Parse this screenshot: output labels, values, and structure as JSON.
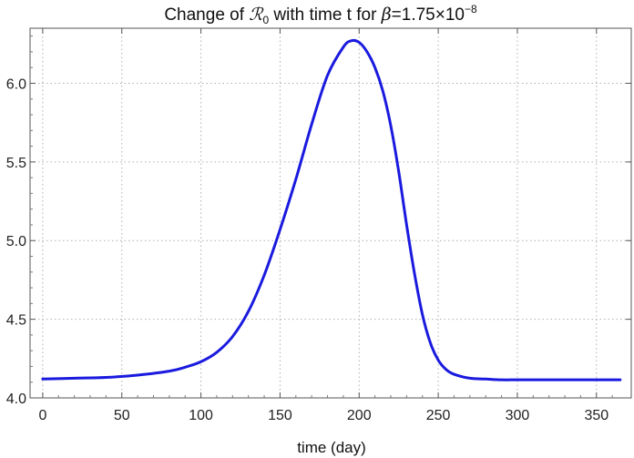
{
  "chart_data": {
    "type": "line",
    "title": {
      "prefix": "Change of ",
      "symbol": "ℛ",
      "subscript": "0",
      "middle": " with time t for ",
      "greek": "β",
      "value": "=1.75×10",
      "exponent": "−8"
    },
    "xlabel": "time (day)",
    "ylabel": "",
    "xlim": [
      -8,
      372
    ],
    "ylim": [
      4.0,
      6.35
    ],
    "x_ticks": [
      0,
      50,
      100,
      150,
      200,
      250,
      300,
      350
    ],
    "y_ticks": [
      4.0,
      4.5,
      5.0,
      5.5,
      6.0
    ],
    "y_tick_labels": [
      "4.0",
      "4.5",
      "5.0",
      "5.5",
      "6.0"
    ],
    "grid": true,
    "series": [
      {
        "color": "#1a1adf",
        "x": [
          0,
          20,
          40,
          60,
          80,
          90,
          100,
          110,
          120,
          130,
          140,
          150,
          160,
          170,
          180,
          190,
          195,
          200,
          205,
          210,
          215,
          220,
          225,
          230,
          235,
          240,
          245,
          250,
          255,
          260,
          270,
          280,
          290,
          300,
          320,
          340,
          365
        ],
        "y": [
          4.12,
          4.125,
          4.13,
          4.145,
          4.17,
          4.195,
          4.23,
          4.29,
          4.39,
          4.55,
          4.78,
          5.07,
          5.39,
          5.74,
          6.05,
          6.23,
          6.27,
          6.26,
          6.2,
          6.1,
          5.95,
          5.73,
          5.44,
          5.1,
          4.79,
          4.53,
          4.35,
          4.24,
          4.18,
          4.15,
          4.125,
          4.12,
          4.115,
          4.115,
          4.115,
          4.115,
          4.115
        ]
      }
    ]
  }
}
